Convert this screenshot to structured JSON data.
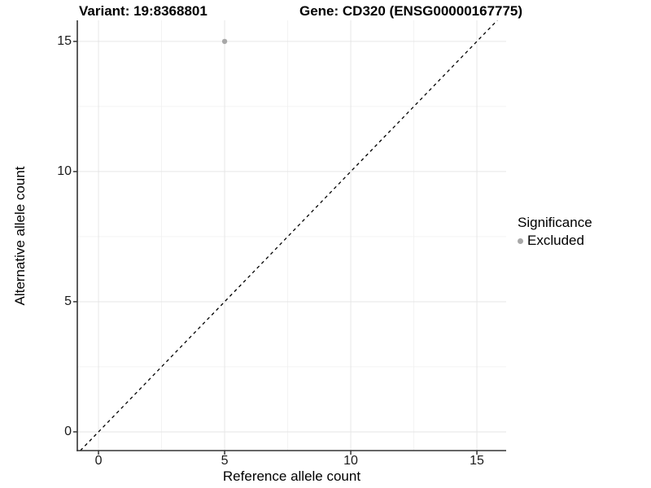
{
  "titles": {
    "variant": "Variant: 19:8368801",
    "gene": "Gene: CD320 (ENSG00000167775)"
  },
  "axes": {
    "x": {
      "title": "Reference allele count",
      "tick_labels": [
        "0",
        "5",
        "10",
        "15"
      ]
    },
    "y": {
      "title": "Alternative allele count",
      "tick_labels": [
        "0",
        "5",
        "10",
        "15"
      ]
    }
  },
  "legend": {
    "title": "Significance",
    "items": [
      {
        "label": "Excluded",
        "color": "#a8a8a8",
        "marker": "circle-icon"
      }
    ]
  },
  "colors": {
    "grid_major": "#e6e6e6",
    "grid_minor": "#f2f2f2",
    "axis_line": "#333333",
    "tick_mark": "#333333",
    "reference_line": "#000000",
    "point": "#a8a8a8",
    "text": "#000000"
  },
  "chart_data": {
    "type": "scatter",
    "title": "Variant: 19:8368801 — Gene: CD320 (ENSG00000167775)",
    "xlabel": "Reference allele count",
    "ylabel": "Alternative allele count",
    "xlim": [
      -0.84,
      16.16
    ],
    "ylim": [
      -0.72,
      15.81
    ],
    "x_ticks": [
      0,
      5,
      10,
      15
    ],
    "y_ticks": [
      0,
      5,
      10,
      15
    ],
    "grid": {
      "major": true,
      "minor": true,
      "minor_at_midpoints": true
    },
    "legend_position": "right",
    "series": [
      {
        "name": "Excluded",
        "color": "#a8a8a8",
        "marker_radius": 3.2,
        "points": [
          {
            "x": 5,
            "y": 15
          }
        ]
      }
    ],
    "reference_line": {
      "kind": "identity_y_equals_x",
      "style": "dashed",
      "color": "#000000",
      "dash": [
        4,
        4
      ]
    }
  }
}
